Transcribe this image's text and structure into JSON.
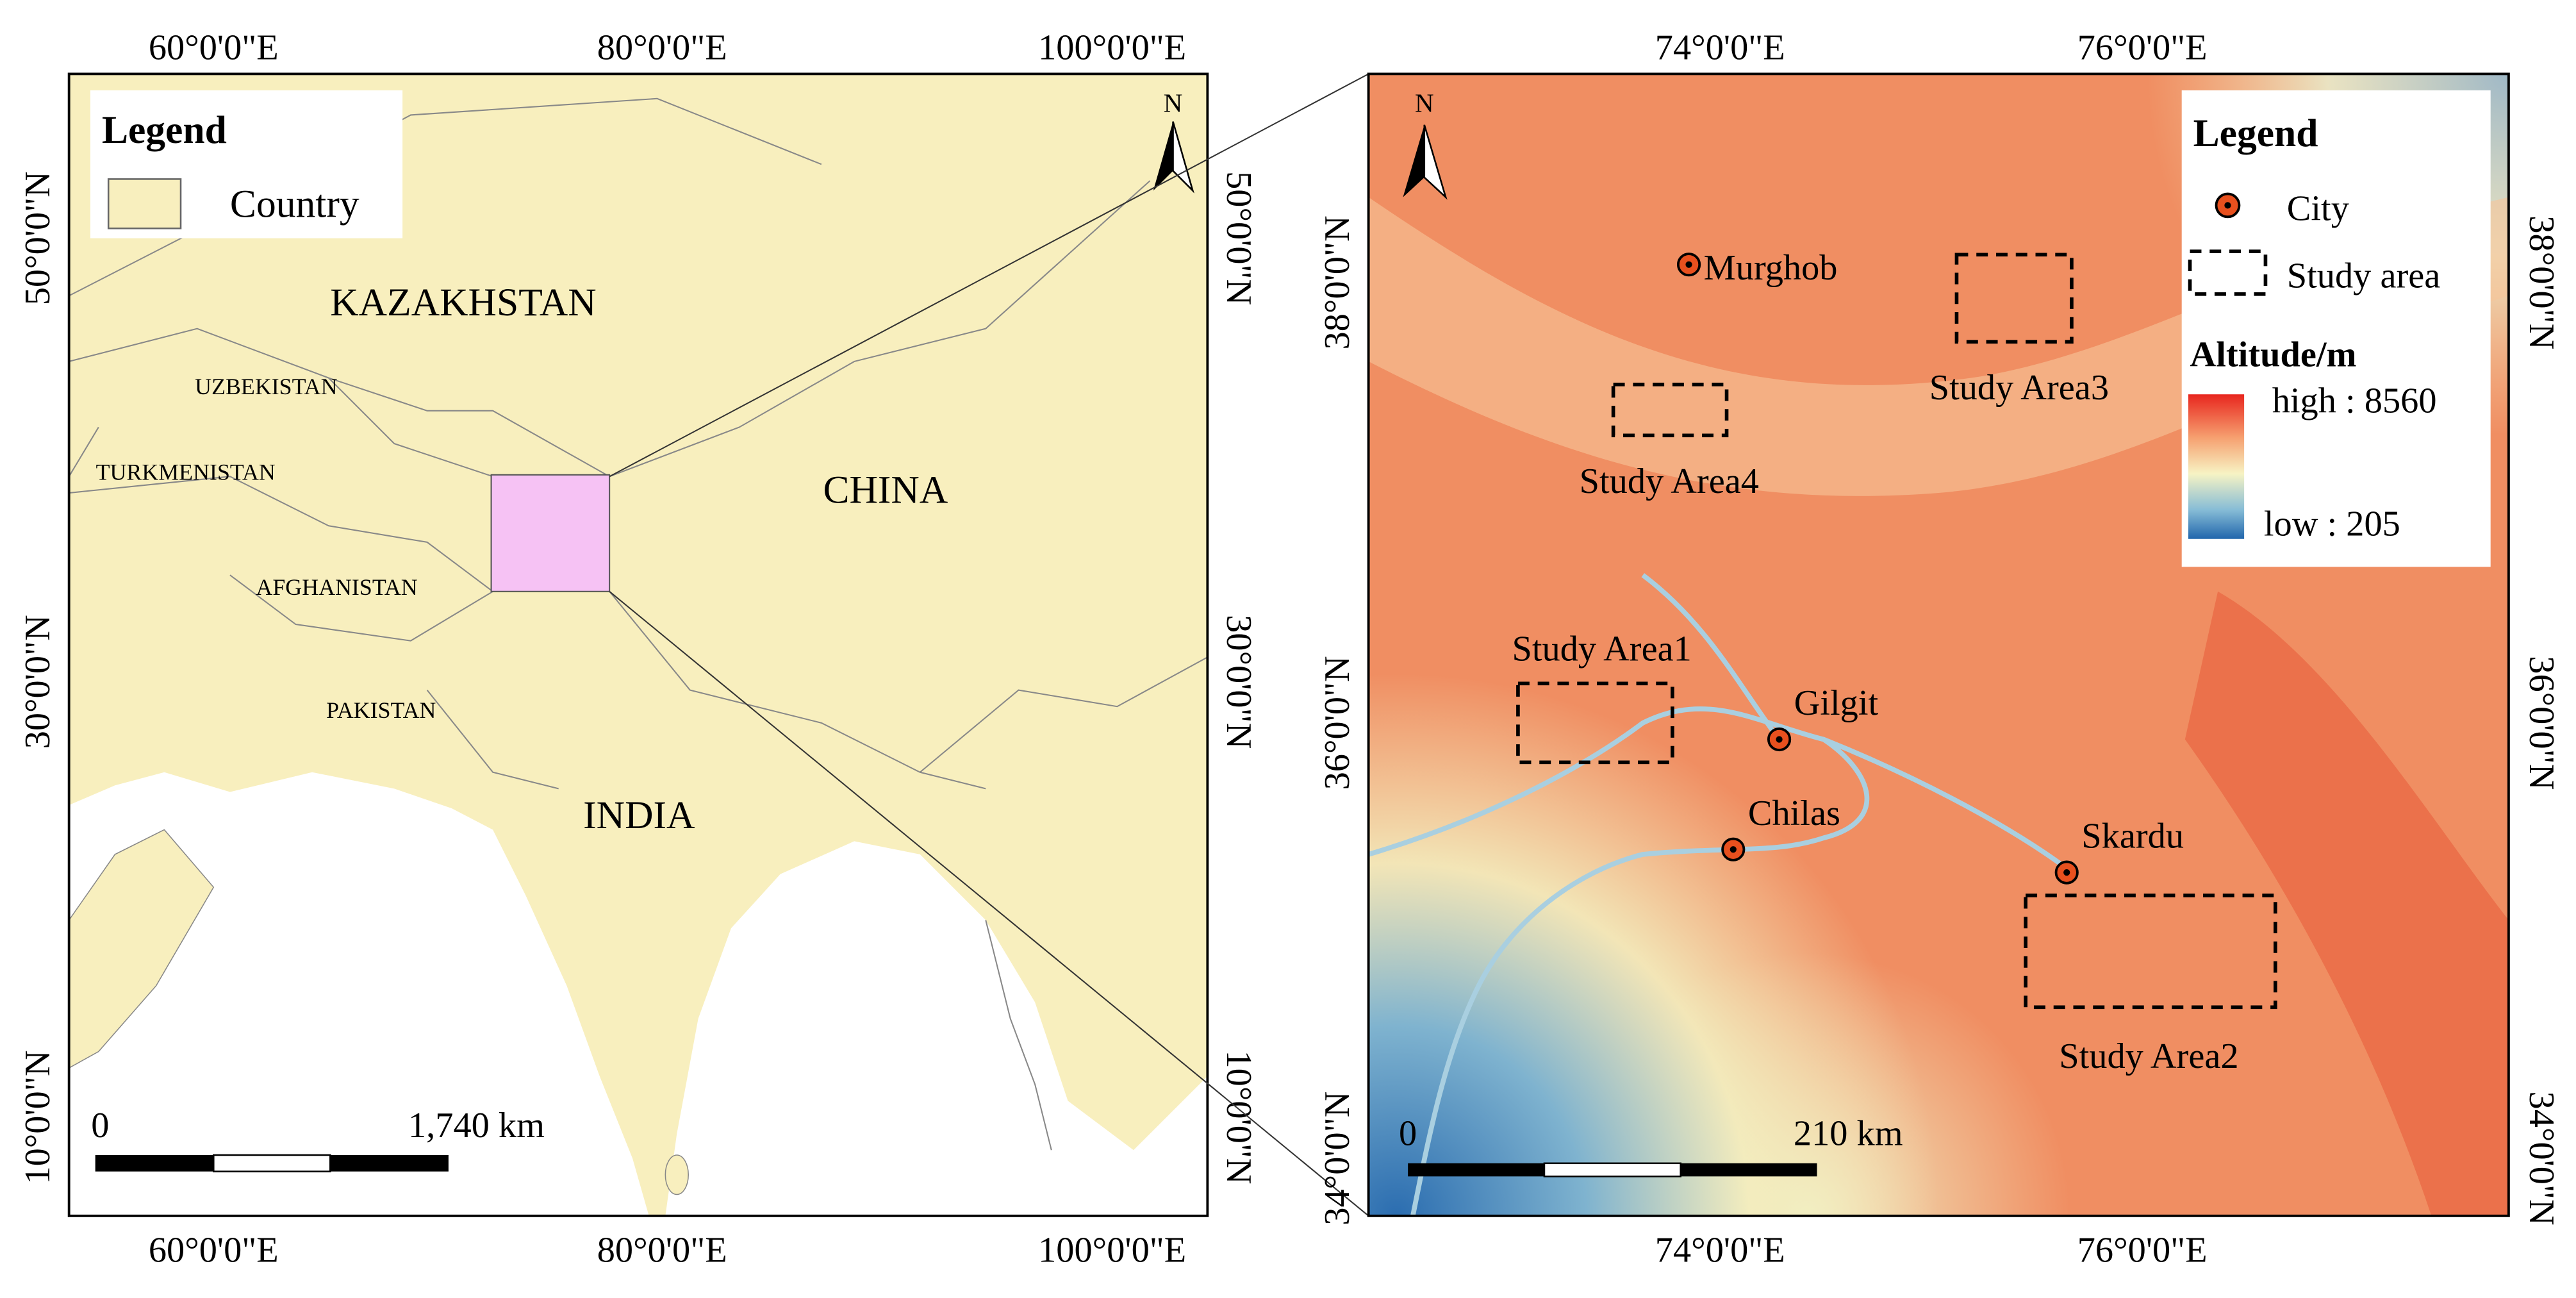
{
  "left_map": {
    "legend": {
      "title": "Legend",
      "items": [
        "Country"
      ]
    },
    "countries": [
      "KAZAKHSTAN",
      "UZBEKISTAN",
      "TURKMENISTAN",
      "AFGHANISTAN",
      "PAKISTAN",
      "CHINA",
      "INDIA"
    ],
    "lon_labels": [
      "60°0'0\"E",
      "80°0'0\"E",
      "100°0'0\"E"
    ],
    "lat_labels": [
      "50°0'0\"N",
      "30°0'0\"N",
      "10°0'0\"N"
    ],
    "north": "N",
    "scale_bar": {
      "start": "0",
      "end": "1,740 km"
    }
  },
  "right_map": {
    "legend": {
      "title": "Legend",
      "items": [
        "City",
        "Study area"
      ],
      "altitude_title": "Altitude/m",
      "high": "high : 8560",
      "low": "low : 205"
    },
    "cities": [
      "Murghob",
      "Gilgit",
      "Chilas",
      "Skardu"
    ],
    "study_areas": [
      "Study Area1",
      "Study Area2",
      "Study Area3",
      "Study Area4"
    ],
    "lon_labels": [
      "74°0'0\"E",
      "76°0'0\"E"
    ],
    "lat_labels": [
      "38°0'0\"N",
      "36°0'0\"N",
      "34°0'0\"N"
    ],
    "north": "N",
    "scale_bar": {
      "start": "0",
      "end": "210 km"
    }
  }
}
